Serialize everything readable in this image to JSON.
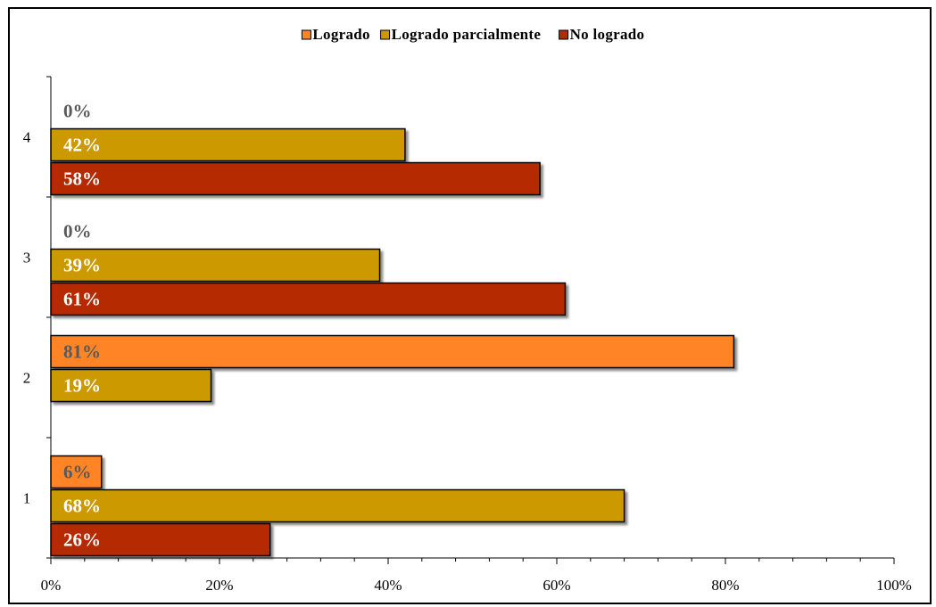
{
  "chart_data": {
    "type": "bar",
    "orientation": "horizontal",
    "categories": [
      "1",
      "2",
      "3",
      "4"
    ],
    "series": [
      {
        "name": "Logrado",
        "color": "#FF8427",
        "values": [
          6,
          81,
          0,
          0
        ],
        "labels": [
          "6%",
          "81%",
          "0%",
          "0%"
        ]
      },
      {
        "name": "Logrado parcialmente",
        "color": "#CC9900",
        "values": [
          68,
          19,
          39,
          42
        ],
        "labels": [
          "68%",
          "19%",
          "39%",
          "42%"
        ]
      },
      {
        "name": "No logrado",
        "color": "#B52A00",
        "values": [
          26,
          0,
          61,
          58
        ],
        "labels": [
          "26%",
          "",
          "61%",
          "58%"
        ]
      }
    ],
    "xlim": [
      0,
      100
    ],
    "xticks": [
      "0%",
      "20%",
      "40%",
      "60%",
      "80%",
      "100%"
    ],
    "legend_position": "top",
    "grid": false
  }
}
